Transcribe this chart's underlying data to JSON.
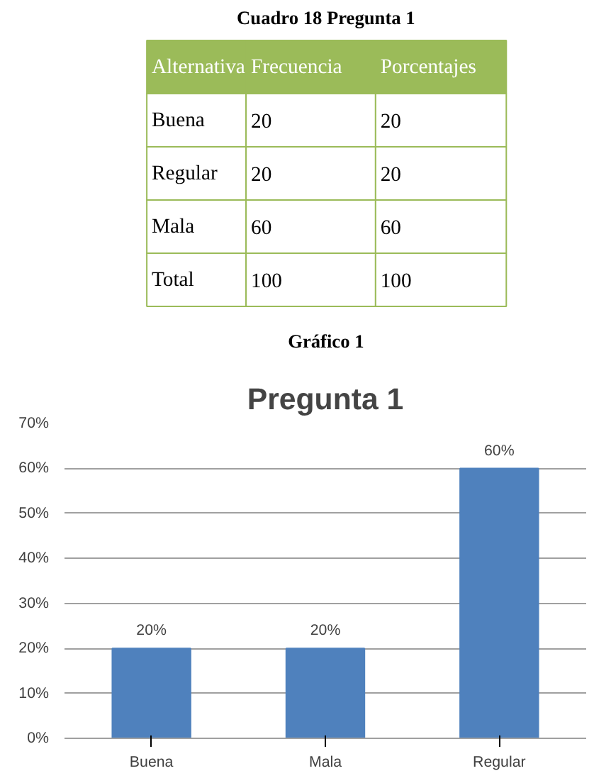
{
  "chart_data": {
    "type": "bar",
    "title": "Pregunta 1",
    "categories": [
      "Buena",
      "Mala",
      "Regular"
    ],
    "values": [
      20,
      20,
      60
    ],
    "value_labels": [
      "20%",
      "20%",
      "60%"
    ],
    "color": "#4f81bd",
    "ylim": [
      0,
      70
    ],
    "yticks": [
      {
        "value": 0,
        "label": "0%"
      },
      {
        "value": 10,
        "label": "10%"
      },
      {
        "value": 20,
        "label": "20%"
      },
      {
        "value": 30,
        "label": "30%"
      },
      {
        "value": 40,
        "label": "40%"
      },
      {
        "value": 50,
        "label": "50%"
      },
      {
        "value": 60,
        "label": "60%"
      },
      {
        "value": 70,
        "label": "70%"
      }
    ],
    "grid": "y",
    "annotations": [
      "Cuadro 18 Pregunta 1",
      "Alternativa",
      "Frecuencia",
      "Porcentajes",
      "Buena",
      "20",
      "20",
      "Regular",
      "20",
      "20",
      "Mala",
      "60",
      "60",
      "Total",
      "100",
      "100",
      "Gráfico 1"
    ]
  }
}
